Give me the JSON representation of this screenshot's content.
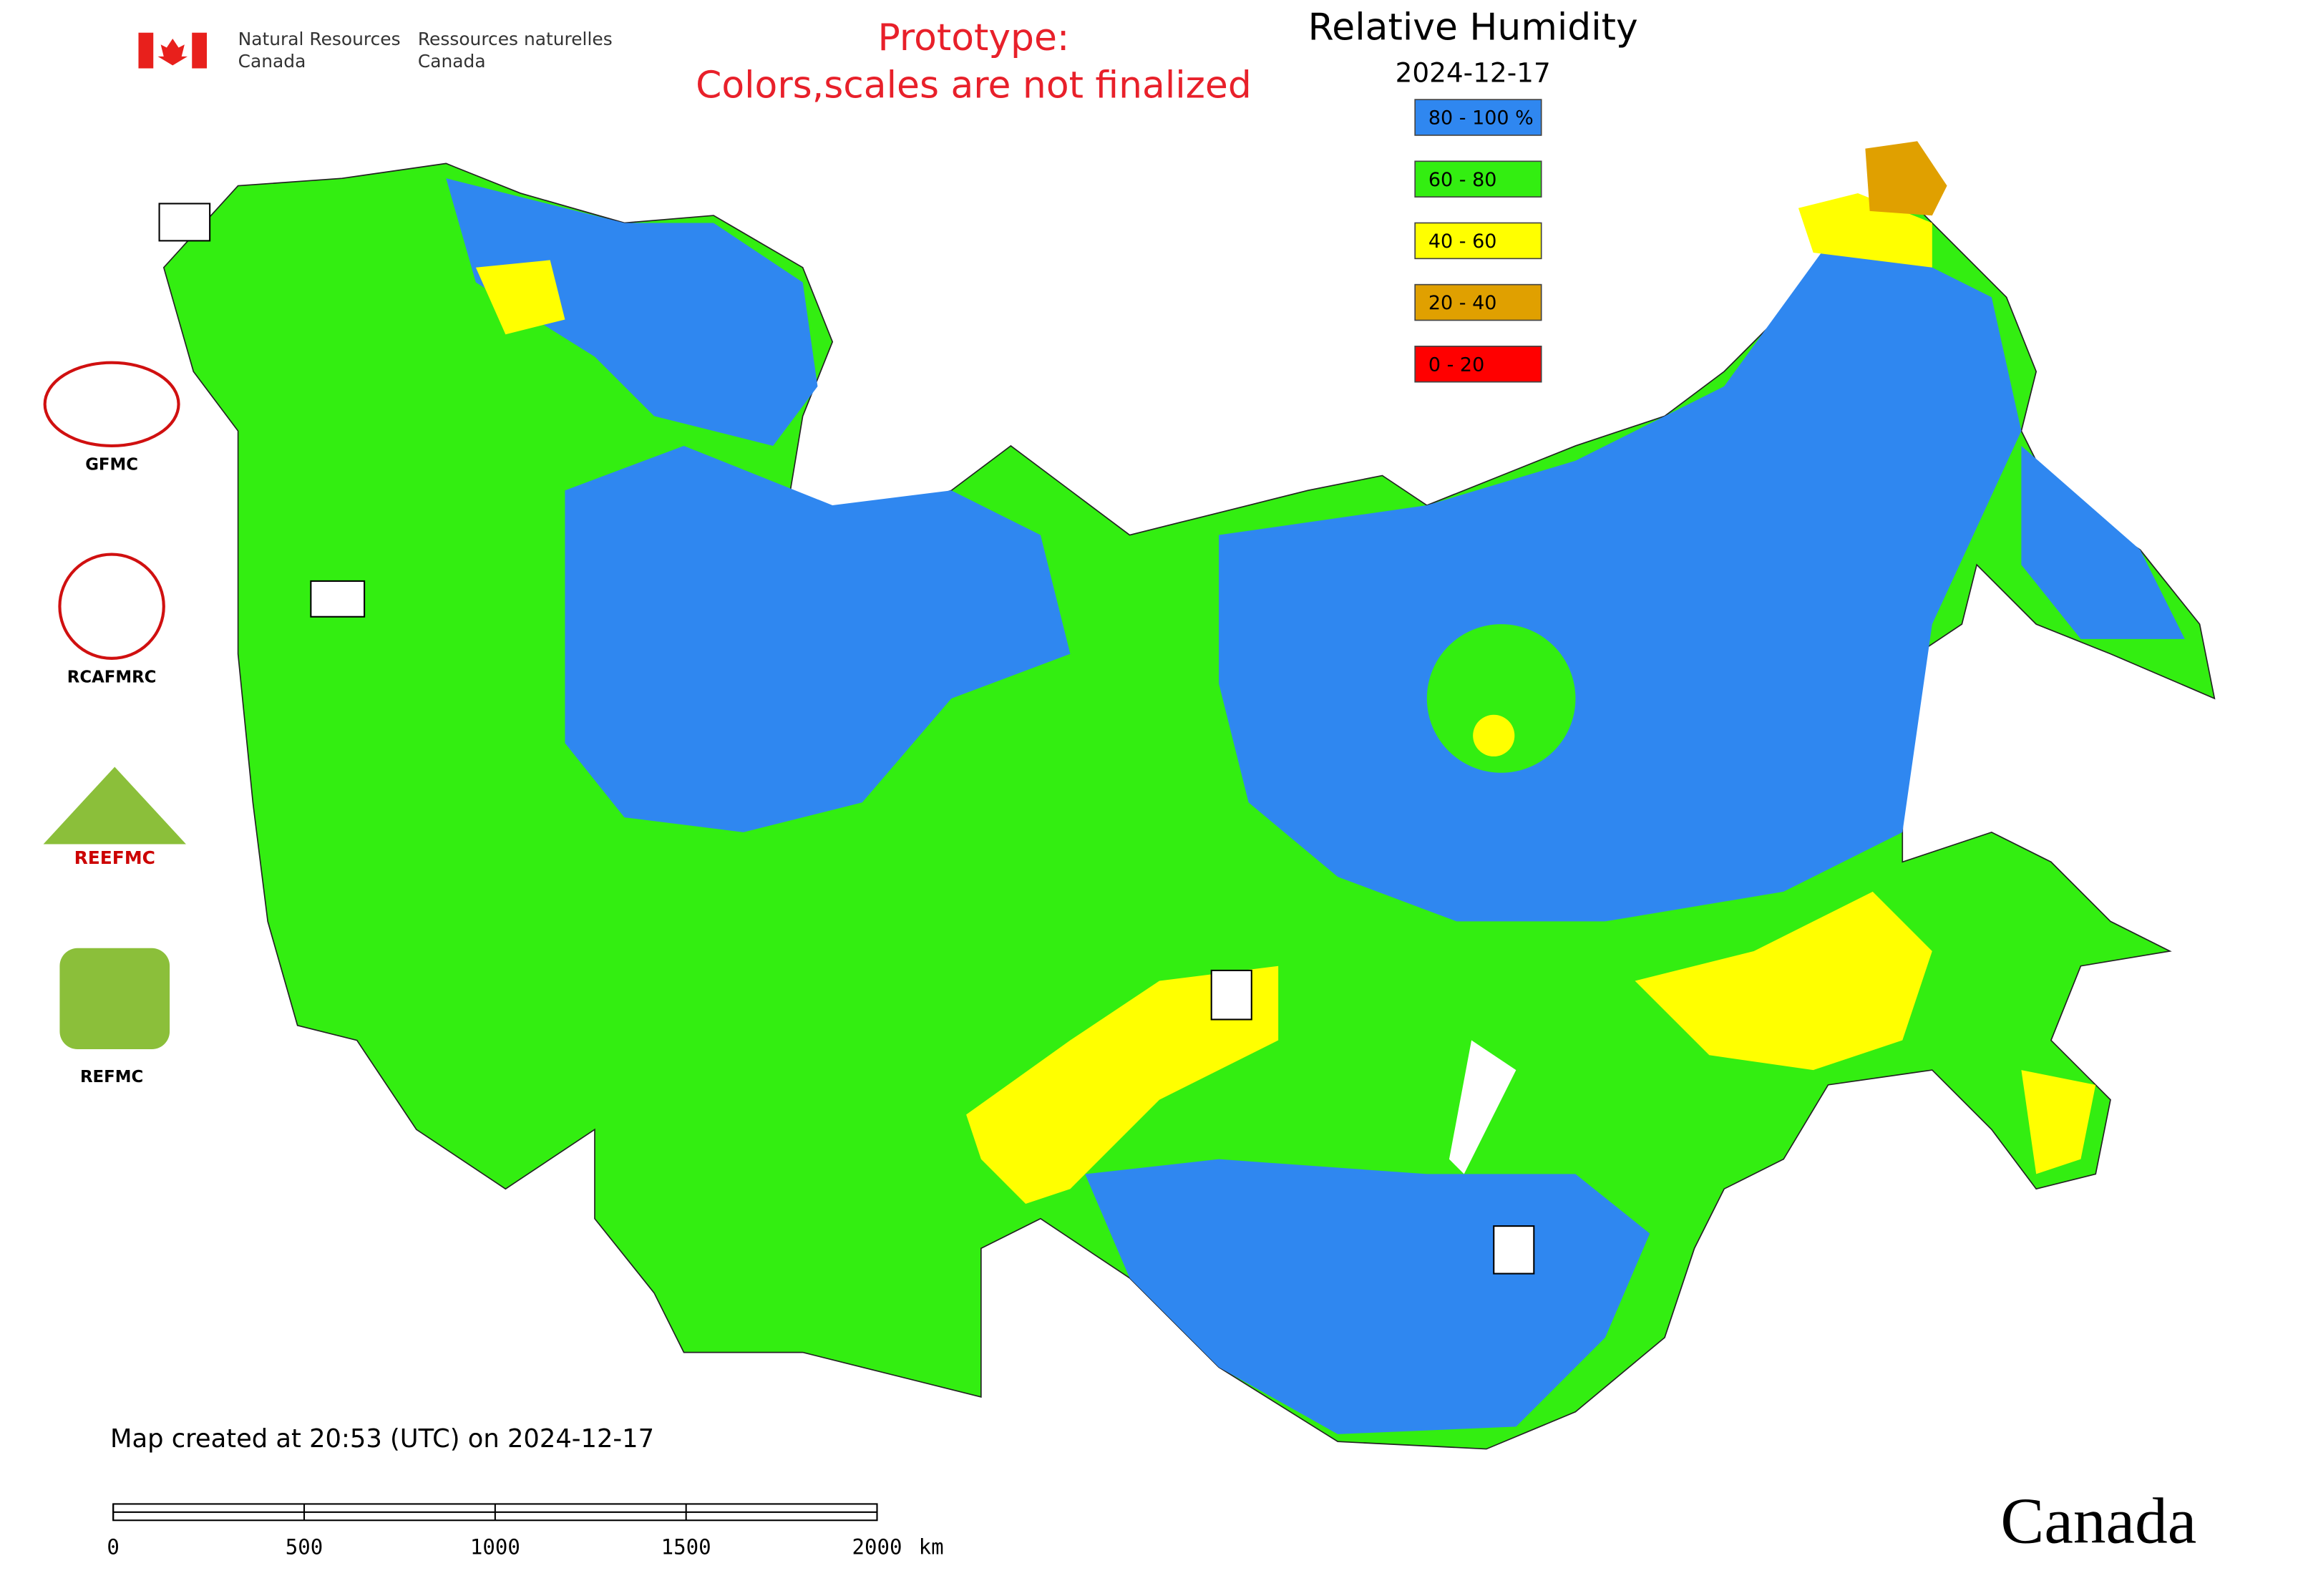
{
  "header": {
    "department_en_line1": "Natural Resources",
    "department_en_line2": "Canada",
    "department_fr_line1": "Ressources naturelles",
    "department_fr_line2": "Canada"
  },
  "notice": {
    "line1": "Prototype:",
    "line2": "Colors,scales are not finalized"
  },
  "map": {
    "title": "Relative Humidity",
    "date": "2024-12-17",
    "legend": [
      {
        "label": "80 - 100 %",
        "color": "#2f87f0"
      },
      {
        "label": "60 - 80",
        "color": "#33ee11"
      },
      {
        "label": "40 - 60",
        "color": "#ffff00"
      },
      {
        "label": "20 - 40",
        "color": "#e0a000"
      },
      {
        "label": "0 - 20",
        "color": "#ff0000"
      }
    ]
  },
  "logos": [
    "GFMC",
    "RCAFMRC",
    "REEFMC",
    "REFMC"
  ],
  "footer": {
    "created": "Map created at 20:53 (UTC) on 2024-12-17",
    "scale": {
      "ticks": [
        0,
        500,
        1000,
        1500,
        2000
      ],
      "unit": "km"
    },
    "wordmark": "Canada"
  }
}
